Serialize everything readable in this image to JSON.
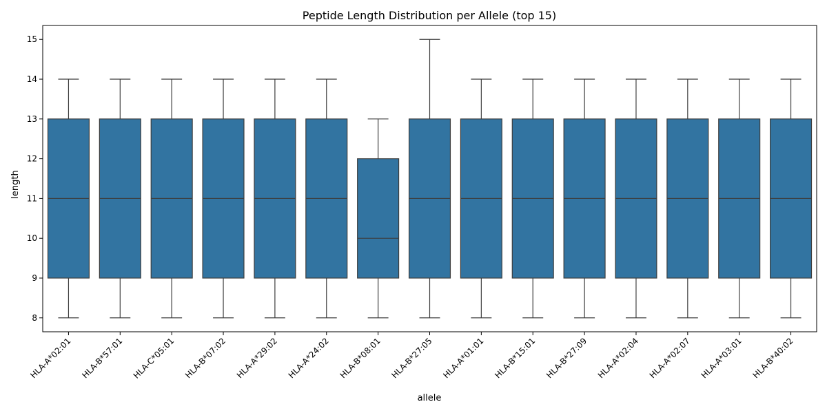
{
  "chart_data": {
    "type": "box",
    "title": "Peptide Length Distribution per Allele (top 15)",
    "xlabel": "allele",
    "ylabel": "length",
    "ylim": [
      7.65,
      15.35
    ],
    "yticks": [
      8,
      9,
      10,
      11,
      12,
      13,
      14,
      15
    ],
    "grid": false,
    "legend": "none",
    "box_color": "#3274a1",
    "line_color": "#3d3d3d",
    "categories": [
      "HLA-A*02:01",
      "HLA-B*57:01",
      "HLA-C*05:01",
      "HLA-B*07:02",
      "HLA-A*29:02",
      "HLA-A*24:02",
      "HLA-B*08:01",
      "HLA-B*27:05",
      "HLA-A*01:01",
      "HLA-B*15:01",
      "HLA-B*27:09",
      "HLA-A*02:04",
      "HLA-A*02:07",
      "HLA-A*03:01",
      "HLA-B*40:02"
    ],
    "boxes": [
      {
        "whisker_low": 8,
        "q1": 9,
        "median": 11,
        "q3": 13,
        "whisker_high": 14
      },
      {
        "whisker_low": 8,
        "q1": 9,
        "median": 11,
        "q3": 13,
        "whisker_high": 14
      },
      {
        "whisker_low": 8,
        "q1": 9,
        "median": 11,
        "q3": 13,
        "whisker_high": 14
      },
      {
        "whisker_low": 8,
        "q1": 9,
        "median": 11,
        "q3": 13,
        "whisker_high": 14
      },
      {
        "whisker_low": 8,
        "q1": 9,
        "median": 11,
        "q3": 13,
        "whisker_high": 14
      },
      {
        "whisker_low": 8,
        "q1": 9,
        "median": 11,
        "q3": 13,
        "whisker_high": 14
      },
      {
        "whisker_low": 8,
        "q1": 9,
        "median": 10,
        "q3": 12,
        "whisker_high": 13
      },
      {
        "whisker_low": 8,
        "q1": 9,
        "median": 11,
        "q3": 13,
        "whisker_high": 15
      },
      {
        "whisker_low": 8,
        "q1": 9,
        "median": 11,
        "q3": 13,
        "whisker_high": 14
      },
      {
        "whisker_low": 8,
        "q1": 9,
        "median": 11,
        "q3": 13,
        "whisker_high": 14
      },
      {
        "whisker_low": 8,
        "q1": 9,
        "median": 11,
        "q3": 13,
        "whisker_high": 14
      },
      {
        "whisker_low": 8,
        "q1": 9,
        "median": 11,
        "q3": 13,
        "whisker_high": 14
      },
      {
        "whisker_low": 8,
        "q1": 9,
        "median": 11,
        "q3": 13,
        "whisker_high": 14
      },
      {
        "whisker_low": 8,
        "q1": 9,
        "median": 11,
        "q3": 13,
        "whisker_high": 14
      },
      {
        "whisker_low": 8,
        "q1": 9,
        "median": 11,
        "q3": 13,
        "whisker_high": 14
      }
    ]
  }
}
